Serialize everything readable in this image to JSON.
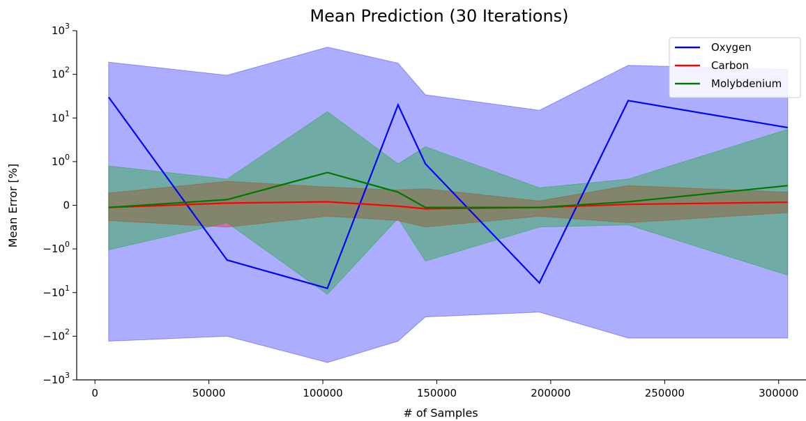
{
  "chart_data": {
    "type": "line",
    "title": "Mean Prediction (30 Iterations)",
    "xlabel": "# of Samples",
    "ylabel": "Mean Error [%]",
    "yscale": "symlog",
    "xlim": [
      -8000,
      312000
    ],
    "ylim": [
      -1000,
      1000
    ],
    "x_ticks": [
      {
        "value": 0,
        "label": "0"
      },
      {
        "value": 50000,
        "label": "50000"
      },
      {
        "value": 100000,
        "label": "100000"
      },
      {
        "value": 150000,
        "label": "150000"
      },
      {
        "value": 200000,
        "label": "200000"
      },
      {
        "value": 250000,
        "label": "250000"
      },
      {
        "value": 300000,
        "label": "300000"
      }
    ],
    "y_ticks": [
      {
        "value": 1000,
        "base": "10",
        "exp": "3"
      },
      {
        "value": 100,
        "base": "10",
        "exp": "2"
      },
      {
        "value": 10,
        "base": "10",
        "exp": "1"
      },
      {
        "value": 1,
        "base": "10",
        "exp": "0"
      },
      {
        "value": 0,
        "base": "0",
        "exp": ""
      },
      {
        "value": -1,
        "base": "−10",
        "exp": "0"
      },
      {
        "value": -10,
        "base": "−10",
        "exp": "1"
      },
      {
        "value": -100,
        "base": "−10",
        "exp": "2"
      },
      {
        "value": -1000,
        "base": "−10",
        "exp": "3"
      }
    ],
    "grid": false,
    "legend_position": "top-right",
    "x": [
      6000,
      58000,
      102000,
      133000,
      145000,
      195000,
      234000,
      304000
    ],
    "series": [
      {
        "name": "Oxygen",
        "color": "#0000ff",
        "band_color": "#0000ff",
        "values": [
          30,
          -1.8,
          -8,
          20,
          0.95,
          -6,
          25,
          6
        ],
        "lower": [
          -130,
          -100,
          -400,
          -130,
          -36,
          -28,
          -110,
          -110
        ],
        "upper": [
          190,
          95,
          420,
          180,
          34,
          15,
          160,
          130
        ]
      },
      {
        "name": "Carbon",
        "color": "#ff0000",
        "band_color": "#ff0000",
        "values": [
          -0.05,
          0.05,
          0.08,
          -0.02,
          -0.08,
          -0.05,
          0.02,
          0.07
        ],
        "lower": [
          -0.35,
          -0.5,
          -0.25,
          -0.35,
          -0.5,
          -0.25,
          -0.4,
          -0.17
        ],
        "upper": [
          0.28,
          0.55,
          0.42,
          0.35,
          0.38,
          0.1,
          0.45,
          0.3
        ]
      },
      {
        "name": "Molybdenium",
        "color": "#007700",
        "band_color": "#00aa00",
        "values": [
          -0.05,
          0.13,
          0.75,
          0.3,
          -0.05,
          -0.05,
          0.08,
          0.45
        ],
        "lower": [
          -1.05,
          -0.4,
          -11,
          -0.3,
          -1.9,
          -0.5,
          -0.45,
          -4
        ],
        "upper": [
          0.9,
          0.6,
          14,
          0.95,
          2.2,
          0.4,
          0.6,
          5.5
        ]
      }
    ]
  }
}
